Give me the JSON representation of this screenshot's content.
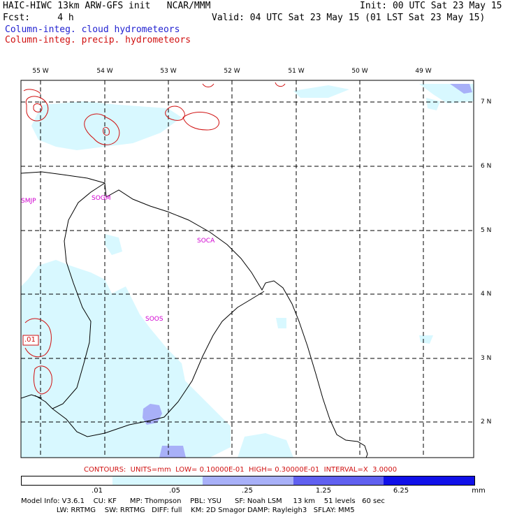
{
  "header": {
    "line1_left": "HAIC-HIWC 13km ARW-GFS init   NCAR/MMM",
    "line1_right": "Init: 00 UTC Sat 23 May 15",
    "line2_left": "Fcst:     4 h",
    "line2_right": "Valid: 04 UTC Sat 23 May 15 (01 LST Sat 23 May 15)",
    "legend_cloud": "Column-integ. cloud hydrometeors",
    "legend_precip": "Column-integ. precip. hydrometeors"
  },
  "map": {
    "lon_labels": [
      "55 W",
      "54 W",
      "53 W",
      "52 W",
      "51 W",
      "50 W",
      "49 W"
    ],
    "lat_labels": [
      "7 N",
      "6 N",
      "5 N",
      "4 N",
      "3 N",
      "2 N"
    ],
    "station_labels": [
      "SMJP",
      "SOGM",
      "SOCA",
      "SOOS"
    ],
    "contour_label": ".01",
    "colors": {
      "coast": "#000000",
      "grid": "#000000",
      "precip_contour": "#d01010",
      "station": "#d000d0",
      "cloud_light": "#d8f8ff",
      "cloud_mid": "#a8b0f8",
      "cloud_dark": "#6060f0"
    }
  },
  "contours_line": "CONTOURS:  UNITS=mm  LOW= 0.10000E-01  HIGH= 0.30000E-01  INTERVAL=X  3.0000",
  "colorbar": {
    "labels": [
      ".01",
      ".05",
      ".25",
      "1.25",
      "6.25",
      "mm"
    ],
    "colors": [
      "#ffffff",
      "#d8f8ff",
      "#a8b0f8",
      "#6060f0",
      "#1010e8"
    ]
  },
  "model_info": {
    "line1": "Model Info: V3.6.1    CU: KF      MP: Thompson    PBL: YSU      SF: Noah LSM     13 km    51 levels   60 sec",
    "line2": "                LW: RRTMG    SW: RRTMG   DIFF: full    KM: 2D Smagor DAMP: Rayleigh3   SFLAY: MM5"
  }
}
